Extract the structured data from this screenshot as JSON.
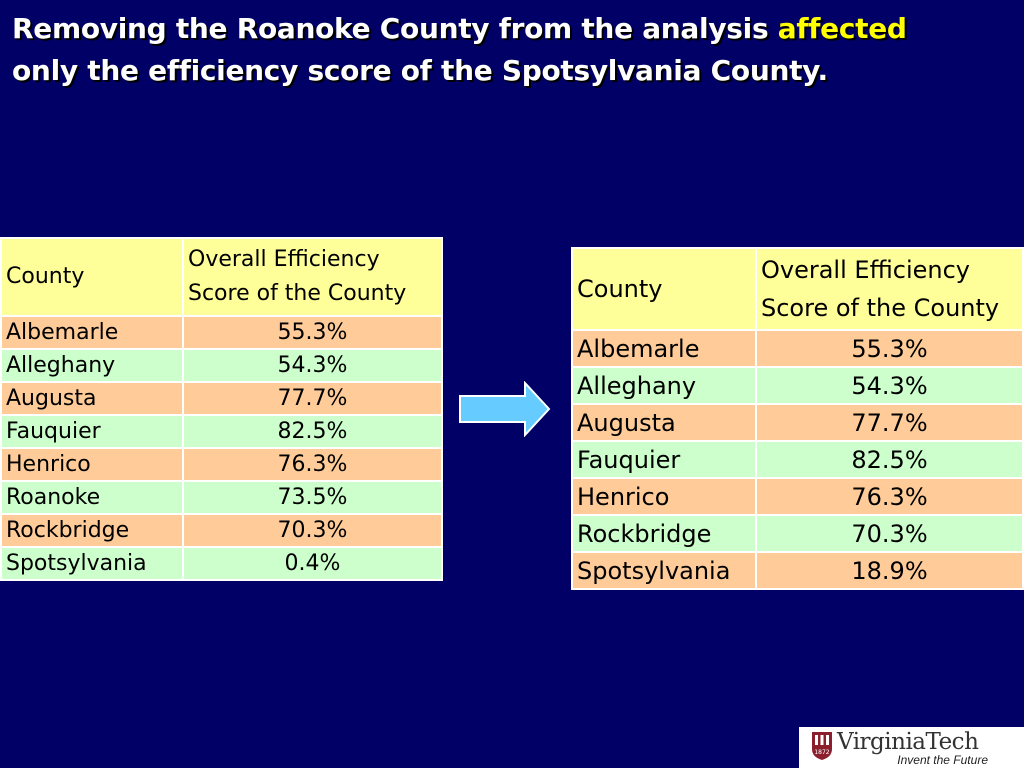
{
  "slide": {
    "title_part1": "Removing the Roanoke County from the analysis ",
    "title_highlight": "affected",
    "title_part2": "only the efficiency score of the Spotsylvania County.",
    "colors": {
      "background": "#000066",
      "title": "#ffffff",
      "highlight": "#ffff00",
      "header_fill": "#ffff99",
      "row_fill_odd": "#ffcc99",
      "row_fill_even": "#ccffcc",
      "arrow": "#66ccff"
    }
  },
  "table_before": {
    "header": {
      "county": "County",
      "score_line1": "Overall Efficiency",
      "score_line2": "Score of the County"
    },
    "rows": [
      {
        "county": "Albemarle",
        "score": "55.3%"
      },
      {
        "county": "Alleghany",
        "score": "54.3%"
      },
      {
        "county": "Augusta",
        "score": "77.7%"
      },
      {
        "county": "Fauquier",
        "score": "82.5%"
      },
      {
        "county": "Henrico",
        "score": "76.3%"
      },
      {
        "county": "Roanoke",
        "score": "73.5%"
      },
      {
        "county": "Rockbridge",
        "score": "70.3%"
      },
      {
        "county": "Spotsylvania",
        "score": "0.4%"
      }
    ]
  },
  "table_after": {
    "header": {
      "county": "County",
      "score_line1": "Overall Efficiency",
      "score_line2": "Score of the County"
    },
    "rows": [
      {
        "county": "Albemarle",
        "score": "55.3%"
      },
      {
        "county": "Alleghany",
        "score": "54.3%"
      },
      {
        "county": "Augusta",
        "score": "77.7%"
      },
      {
        "county": "Fauquier",
        "score": "82.5%"
      },
      {
        "county": "Henrico",
        "score": "76.3%"
      },
      {
        "county": "Rockbridge",
        "score": "70.3%"
      },
      {
        "county": "Spotsylvania",
        "score": "18.9%"
      }
    ]
  },
  "arrow": {
    "icon": "right-arrow-icon"
  },
  "logo": {
    "name": "VirginiaTech",
    "tagline": "Invent the Future",
    "shield_text": "1872"
  }
}
